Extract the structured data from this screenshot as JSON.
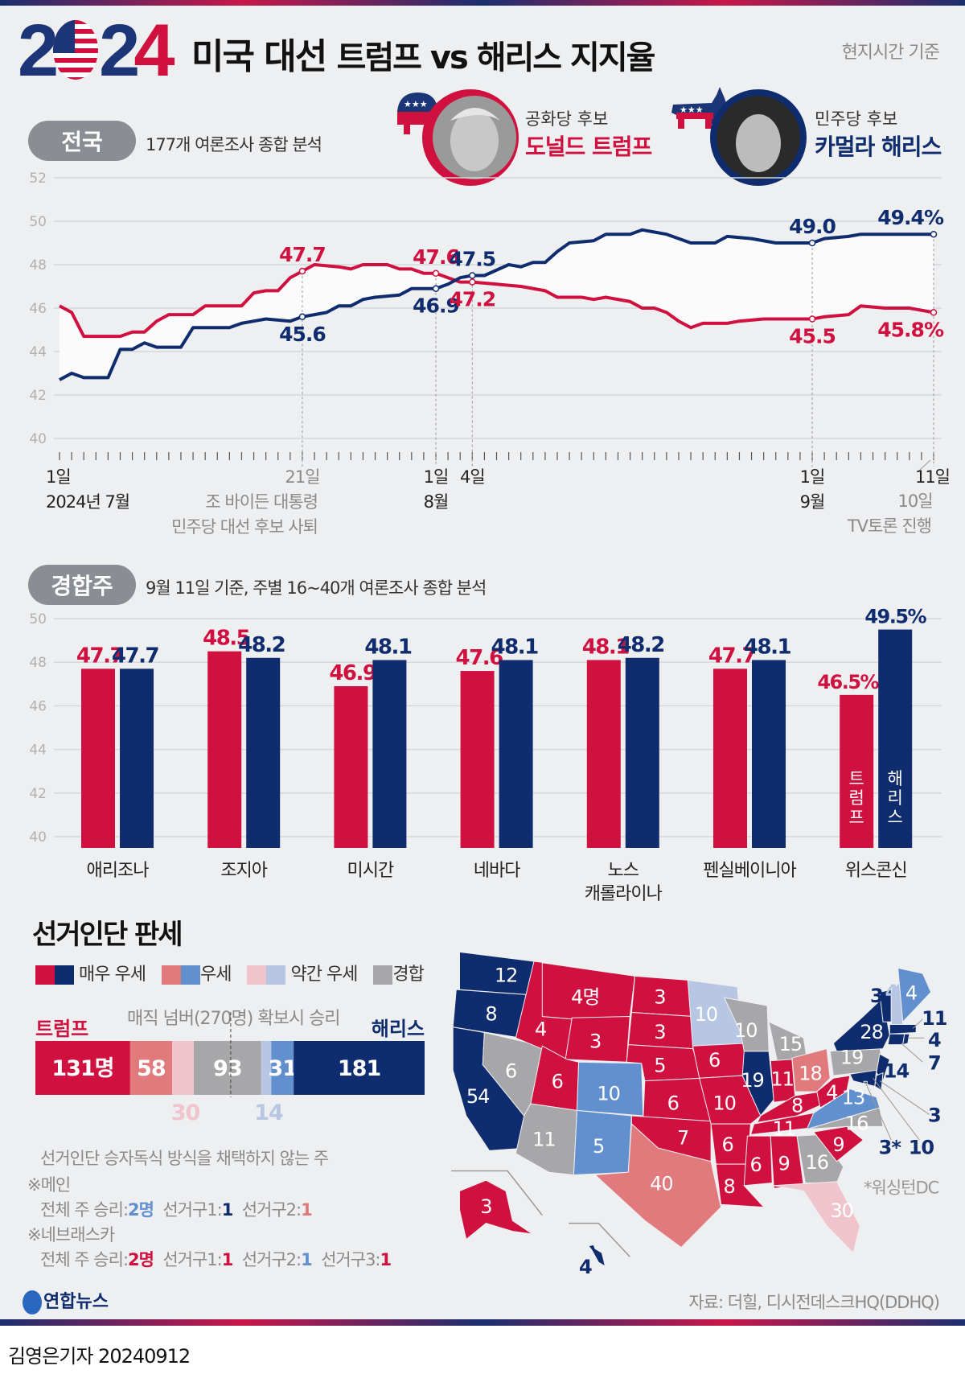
{
  "header": {
    "year": "2024",
    "title_a": "미국 대선",
    "title_b": "트럼프 vs 해리스 지지율",
    "time_note": "현지시간 기준"
  },
  "candidates": {
    "trump": {
      "party": "공화당 후보",
      "name": "도널드 트럼프"
    },
    "harris": {
      "party": "민주당 후보",
      "name": "카멀라 해리스"
    }
  },
  "colors": {
    "trump": "#d0103f",
    "harris": "#0f2d6e",
    "t2": "#e07a7c",
    "h2": "#6290cf",
    "t1": "#f0c4cc",
    "h1": "#b6c6e3",
    "tossup": "#a7a7a9"
  },
  "national": {
    "pill": "전국",
    "subtitle": "177개 여론조사 종합 분석"
  },
  "chart_data": [
    {
      "type": "line",
      "title": "전국",
      "subtitle": "177개 여론조사 종합 분석",
      "xlabel": "day (2024-07-01 = 0)",
      "ylim": [
        40,
        52
      ],
      "yticks": [
        "52",
        "50",
        "48",
        "46",
        "44",
        "42",
        "40"
      ],
      "series": [
        {
          "name": "트럼프",
          "color": "#d0103f",
          "points": [
            [
              0,
              46.1
            ],
            [
              1,
              45.8
            ],
            [
              2,
              44.7
            ],
            [
              5,
              44.7
            ],
            [
              6,
              44.9
            ],
            [
              7,
              44.9
            ],
            [
              8,
              45.4
            ],
            [
              9,
              45.7
            ],
            [
              11,
              45.7
            ],
            [
              12,
              46.1
            ],
            [
              15,
              46.1
            ],
            [
              16,
              46.7
            ],
            [
              17,
              46.8
            ],
            [
              18,
              46.8
            ],
            [
              19,
              47.4
            ],
            [
              20,
              47.7
            ],
            [
              21,
              48.0
            ],
            [
              23,
              47.9
            ],
            [
              24,
              47.8
            ],
            [
              25,
              48.0
            ],
            [
              27,
              48.0
            ],
            [
              28,
              47.8
            ],
            [
              29,
              47.8
            ],
            [
              30,
              47.6
            ],
            [
              31,
              47.6
            ],
            [
              32,
              47.4
            ],
            [
              33,
              47.2
            ],
            [
              34,
              47.2
            ],
            [
              36,
              47.1
            ],
            [
              38,
              47.0
            ],
            [
              40,
              46.8
            ],
            [
              41,
              46.5
            ],
            [
              43,
              46.5
            ],
            [
              44,
              46.4
            ],
            [
              45,
              46.5
            ],
            [
              47,
              46.3
            ],
            [
              48,
              46.0
            ],
            [
              49,
              46.0
            ],
            [
              50,
              45.8
            ],
            [
              51,
              45.4
            ],
            [
              52,
              45.1
            ],
            [
              53,
              45.3
            ],
            [
              55,
              45.3
            ],
            [
              56,
              45.4
            ],
            [
              58,
              45.5
            ],
            [
              62,
              45.5
            ],
            [
              63,
              45.6
            ],
            [
              65,
              45.7
            ],
            [
              66,
              46.1
            ],
            [
              68,
              46.0
            ],
            [
              70,
              46.0
            ],
            [
              72,
              45.8
            ]
          ]
        },
        {
          "name": "해리스",
          "color": "#0f2d6e",
          "points": [
            [
              0,
              42.7
            ],
            [
              1,
              43.0
            ],
            [
              2,
              42.8
            ],
            [
              4,
              42.8
            ],
            [
              5,
              44.1
            ],
            [
              6,
              44.1
            ],
            [
              7,
              44.4
            ],
            [
              8,
              44.2
            ],
            [
              10,
              44.2
            ],
            [
              11,
              45.1
            ],
            [
              14,
              45.1
            ],
            [
              15,
              45.3
            ],
            [
              16,
              45.4
            ],
            [
              17,
              45.5
            ],
            [
              19,
              45.4
            ],
            [
              20,
              45.6
            ],
            [
              21,
              45.7
            ],
            [
              22,
              45.8
            ],
            [
              23,
              46.1
            ],
            [
              24,
              46.1
            ],
            [
              25,
              46.4
            ],
            [
              26,
              46.5
            ],
            [
              28,
              46.6
            ],
            [
              29,
              46.9
            ],
            [
              31,
              46.9
            ],
            [
              32,
              47.1
            ],
            [
              33,
              47.4
            ],
            [
              34,
              47.5
            ],
            [
              35,
              47.5
            ],
            [
              37,
              48.0
            ],
            [
              38,
              47.9
            ],
            [
              39,
              48.1
            ],
            [
              40,
              48.1
            ],
            [
              41,
              48.6
            ],
            [
              42,
              49.0
            ],
            [
              44,
              49.1
            ],
            [
              45,
              49.4
            ],
            [
              47,
              49.4
            ],
            [
              48,
              49.6
            ],
            [
              49,
              49.5
            ],
            [
              50,
              49.4
            ],
            [
              51,
              49.2
            ],
            [
              52,
              49.0
            ],
            [
              54,
              49.0
            ],
            [
              55,
              49.3
            ],
            [
              57,
              49.2
            ],
            [
              59,
              49.0
            ],
            [
              62,
              49.0
            ],
            [
              63,
              49.2
            ],
            [
              65,
              49.3
            ],
            [
              66,
              49.4
            ],
            [
              72,
              49.4
            ]
          ]
        }
      ],
      "annotations": [
        {
          "day": 20,
          "series": "트럼프",
          "text": "47.7",
          "pos": "above"
        },
        {
          "day": 20,
          "series": "해리스",
          "text": "45.6",
          "pos": "below"
        },
        {
          "day": 31,
          "series": "트럼프",
          "text": "47.6",
          "pos": "above"
        },
        {
          "day": 31,
          "series": "해리스",
          "text": "46.9",
          "pos": "below"
        },
        {
          "day": 34,
          "series": "해리스",
          "text": "47.5",
          "pos": "above"
        },
        {
          "day": 34,
          "series": "트럼프",
          "text": "47.2",
          "pos": "below"
        },
        {
          "day": 62,
          "series": "해리스",
          "text": "49.0",
          "pos": "above"
        },
        {
          "day": 62,
          "series": "트럼프",
          "text": "45.5",
          "pos": "below"
        },
        {
          "day": 72,
          "series": "해리스",
          "text": "49.4%",
          "pos": "above"
        },
        {
          "day": 72,
          "series": "트럼프",
          "text": "45.8%",
          "pos": "below"
        }
      ],
      "xlabels": [
        {
          "day": 0,
          "lines": [
            "1일",
            "2024년 7월"
          ],
          "style": "dark"
        },
        {
          "day": 20,
          "lines": [
            "21일",
            "조 바이든 대통령",
            "민주당 대선 후보 사퇴"
          ],
          "style": "gray"
        },
        {
          "day": 31,
          "lines": [
            "1일",
            "8월"
          ],
          "style": "dark"
        },
        {
          "day": 34,
          "lines": [
            "4일"
          ],
          "style": "dark"
        },
        {
          "day": 62,
          "lines": [
            "1일",
            "9월"
          ],
          "style": "dark"
        },
        {
          "day": 72,
          "lines": [
            "11일"
          ],
          "style": "dark"
        },
        {
          "day": 71,
          "lines": [
            "10일",
            "TV토론 진행"
          ],
          "style": "gray"
        }
      ]
    },
    {
      "type": "bar",
      "title": "경합주",
      "subtitle": "9월 11일 기준, 주별 16~40개 여론조사 종합 분석",
      "ylim": [
        40,
        50
      ],
      "yticks": [
        "50",
        "48",
        "46",
        "44",
        "42",
        "40"
      ],
      "categories": [
        "애리조나",
        "조지아",
        "미시간",
        "네바다",
        "노스\n캐롤라이나",
        "펜실베이니아",
        "위스콘신"
      ],
      "series": [
        {
          "name": "트럼프",
          "values": [
            47.7,
            48.5,
            46.9,
            47.6,
            48.1,
            47.7,
            46.5
          ],
          "labels": [
            "47.7",
            "48.5",
            "46.9",
            "47.6",
            "48.1",
            "47.7",
            "46.5%"
          ]
        },
        {
          "name": "해리스",
          "values": [
            47.7,
            48.2,
            48.1,
            48.1,
            48.2,
            48.1,
            49.5
          ],
          "labels": [
            "47.7",
            "48.2",
            "48.1",
            "48.1",
            "48.2",
            "48.1",
            "49.5%"
          ]
        }
      ],
      "in_bar_labels": [
        "트럼프",
        "해리스"
      ]
    }
  ],
  "battleground": {
    "pill": "경합주",
    "subtitle": "9월 11일 기준, 주별 16~40개 여론조사 종합 분석"
  },
  "electoral": {
    "title": "선거인단 판세",
    "legend": [
      "매우 우세",
      "우세",
      "약간 우세",
      "경합"
    ],
    "trump_label": "트럼프",
    "harris_label": "해리스",
    "magic": "매직 넘버(270명) 확보시 승리",
    "segments": [
      {
        "key": "t3",
        "value": 131,
        "label": "131명"
      },
      {
        "key": "t2",
        "value": 58,
        "label": "58"
      },
      {
        "key": "t1",
        "value": 30,
        "label": "30"
      },
      {
        "key": "tossup",
        "value": 93,
        "label": "93"
      },
      {
        "key": "h1",
        "value": 14,
        "label": "14"
      },
      {
        "key": "h2",
        "value": 31,
        "label": "31"
      },
      {
        "key": "h3",
        "value": 181,
        "label": "181"
      }
    ],
    "notes": {
      "heading": "선거인단 승자독식 방식을 채택하지 않는 주",
      "maine": {
        "name": "※메인",
        "a": "전체 주 승리:",
        "a_v": "2명",
        "b": "선거구1:",
        "b_v": "1",
        "c": "선거구2:",
        "c_v": "1"
      },
      "nebraska": {
        "name": "※네브래스카",
        "a": "전체 주 승리:",
        "a_v": "2명",
        "b": "선거구1:",
        "b_v": "1",
        "c": "선거구2:",
        "c_v": "1",
        "d": "선거구3:",
        "d_v": "1"
      }
    }
  },
  "map": {
    "dc_note": "*워싱턴DC",
    "states": {
      "WA": {
        "ev": "12",
        "r": "h3"
      },
      "OR": {
        "ev": "8",
        "r": "h3"
      },
      "CA": {
        "ev": "54",
        "r": "h3"
      },
      "NV": {
        "ev": "6",
        "r": "tossup"
      },
      "ID": {
        "ev": "4",
        "r": "t3"
      },
      "MT": {
        "ev": "4명",
        "r": "t3"
      },
      "WY": {
        "ev": "3",
        "r": "t3"
      },
      "UT": {
        "ev": "6",
        "r": "t3"
      },
      "CO": {
        "ev": "10",
        "r": "h2"
      },
      "AZ": {
        "ev": "11",
        "r": "tossup"
      },
      "NM": {
        "ev": "5",
        "r": "h2"
      },
      "ND": {
        "ev": "3",
        "r": "t3"
      },
      "SD": {
        "ev": "3",
        "r": "t3"
      },
      "NE": {
        "ev": "5",
        "r": "t3"
      },
      "KS": {
        "ev": "6",
        "r": "t3"
      },
      "OK": {
        "ev": "7",
        "r": "t3"
      },
      "TX": {
        "ev": "40",
        "r": "t2"
      },
      "MN": {
        "ev": "10",
        "r": "h1"
      },
      "IA": {
        "ev": "6",
        "r": "t3"
      },
      "MO": {
        "ev": "10",
        "r": "t3"
      },
      "AR": {
        "ev": "6",
        "r": "t3"
      },
      "LA": {
        "ev": "8",
        "r": "t3"
      },
      "WI": {
        "ev": "10",
        "r": "tossup"
      },
      "IL": {
        "ev": "19",
        "r": "h3"
      },
      "MI": {
        "ev": "15",
        "r": "tossup"
      },
      "IN": {
        "ev": "11",
        "r": "t3"
      },
      "OH": {
        "ev": "18",
        "r": "t2"
      },
      "KY": {
        "ev": "8",
        "r": "t3"
      },
      "TN": {
        "ev": "11",
        "r": "t3"
      },
      "MS": {
        "ev": "6",
        "r": "t3"
      },
      "AL": {
        "ev": "9",
        "r": "t3"
      },
      "GA": {
        "ev": "16",
        "r": "tossup"
      },
      "FL": {
        "ev": "30",
        "r": "t1"
      },
      "SC": {
        "ev": "9",
        "r": "t3"
      },
      "NC": {
        "ev": "16",
        "r": "tossup"
      },
      "VA": {
        "ev": "13",
        "r": "h2"
      },
      "WV": {
        "ev": "4",
        "r": "t3"
      },
      "PA": {
        "ev": "19",
        "r": "tossup"
      },
      "NY": {
        "ev": "28",
        "r": "h3"
      },
      "VT": {
        "ev": "3",
        "r": "h3"
      },
      "NH": {
        "ev": "4",
        "r": "h1"
      },
      "ME": {
        "ev": "4",
        "r": "h2"
      },
      "MA": {
        "ev": "11",
        "r": "h3"
      },
      "RI": {
        "ev": "4",
        "r": "h3"
      },
      "CT": {
        "ev": "7",
        "r": "h3"
      },
      "NJ": {
        "ev": "14",
        "r": "h3"
      },
      "DE": {
        "ev": "3",
        "r": "h3"
      },
      "MD": {
        "ev": "10",
        "r": "h3"
      },
      "DC": {
        "ev": "3*",
        "r": "h3"
      },
      "AK": {
        "ev": "3",
        "r": "t3"
      },
      "HI": {
        "ev": "4",
        "r": "h3"
      }
    }
  },
  "footer": {
    "logo": "연합뉴스",
    "source": "자료: 더힐, 디시전데스크HQ(DDHQ)",
    "byline": "김영은기자",
    "date": "20240912"
  }
}
